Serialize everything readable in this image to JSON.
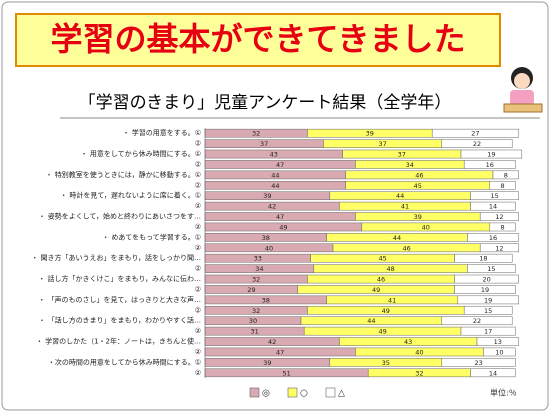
{
  "banner_title": "学習の基本ができてきました",
  "chart_data": {
    "type": "stacked-barh",
    "title": "「学習のきまり」児童アンケート結果（全学年）",
    "unit_label": "単位:％",
    "categories": [
      "・ 学習の用意をする。①",
      "②",
      "・ 用意をしてから休み時間にする。①",
      "②",
      "・ 特別教室を使うときには，静かに移動する。①",
      "②",
      "・ 時計を見て，遅れないように席に着く。①",
      "②",
      "・ 姿勢をよくして，始めと終わりにあいさつをす…",
      "②",
      "・ めあてをもって学習する。①",
      "②",
      "・ 聞き方「あいうえお」をまもり，話をしっかり聞…",
      "②",
      "・ 話し方「かきくけこ」をまもり，みんなに伝わ…",
      "②",
      "・ 「声のものさし」を見て，はっきりと大きな声…",
      "②",
      "・ 「話し方のきまり」をまもり，わかりやすく話…",
      "②",
      "・ 学習のしかた（1・2年：ノートは，きちんと使…",
      "②",
      "・次の時間の用意をしてから休み時間にする。①",
      "②"
    ],
    "series": [
      {
        "name": "◎",
        "color": "#d9aab1",
        "values": [
          32,
          37,
          43,
          47,
          44,
          44,
          39,
          42,
          47,
          49,
          38,
          40,
          33,
          34,
          32,
          29,
          38,
          32,
          30,
          31,
          42,
          47,
          39,
          51
        ]
      },
      {
        "name": "○",
        "color": "#ffff66",
        "values": [
          39,
          37,
          37,
          34,
          46,
          45,
          44,
          41,
          39,
          40,
          44,
          46,
          45,
          48,
          46,
          49,
          41,
          49,
          44,
          49,
          43,
          40,
          35,
          32
        ]
      },
      {
        "name": "△",
        "color": "#ffffff",
        "values": [
          27,
          22,
          19,
          16,
          8,
          8,
          15,
          14,
          12,
          8,
          16,
          12,
          18,
          15,
          20,
          19,
          19,
          15,
          22,
          17,
          13,
          10,
          23,
          14
        ]
      }
    ],
    "xlim": [
      0,
      100
    ]
  }
}
